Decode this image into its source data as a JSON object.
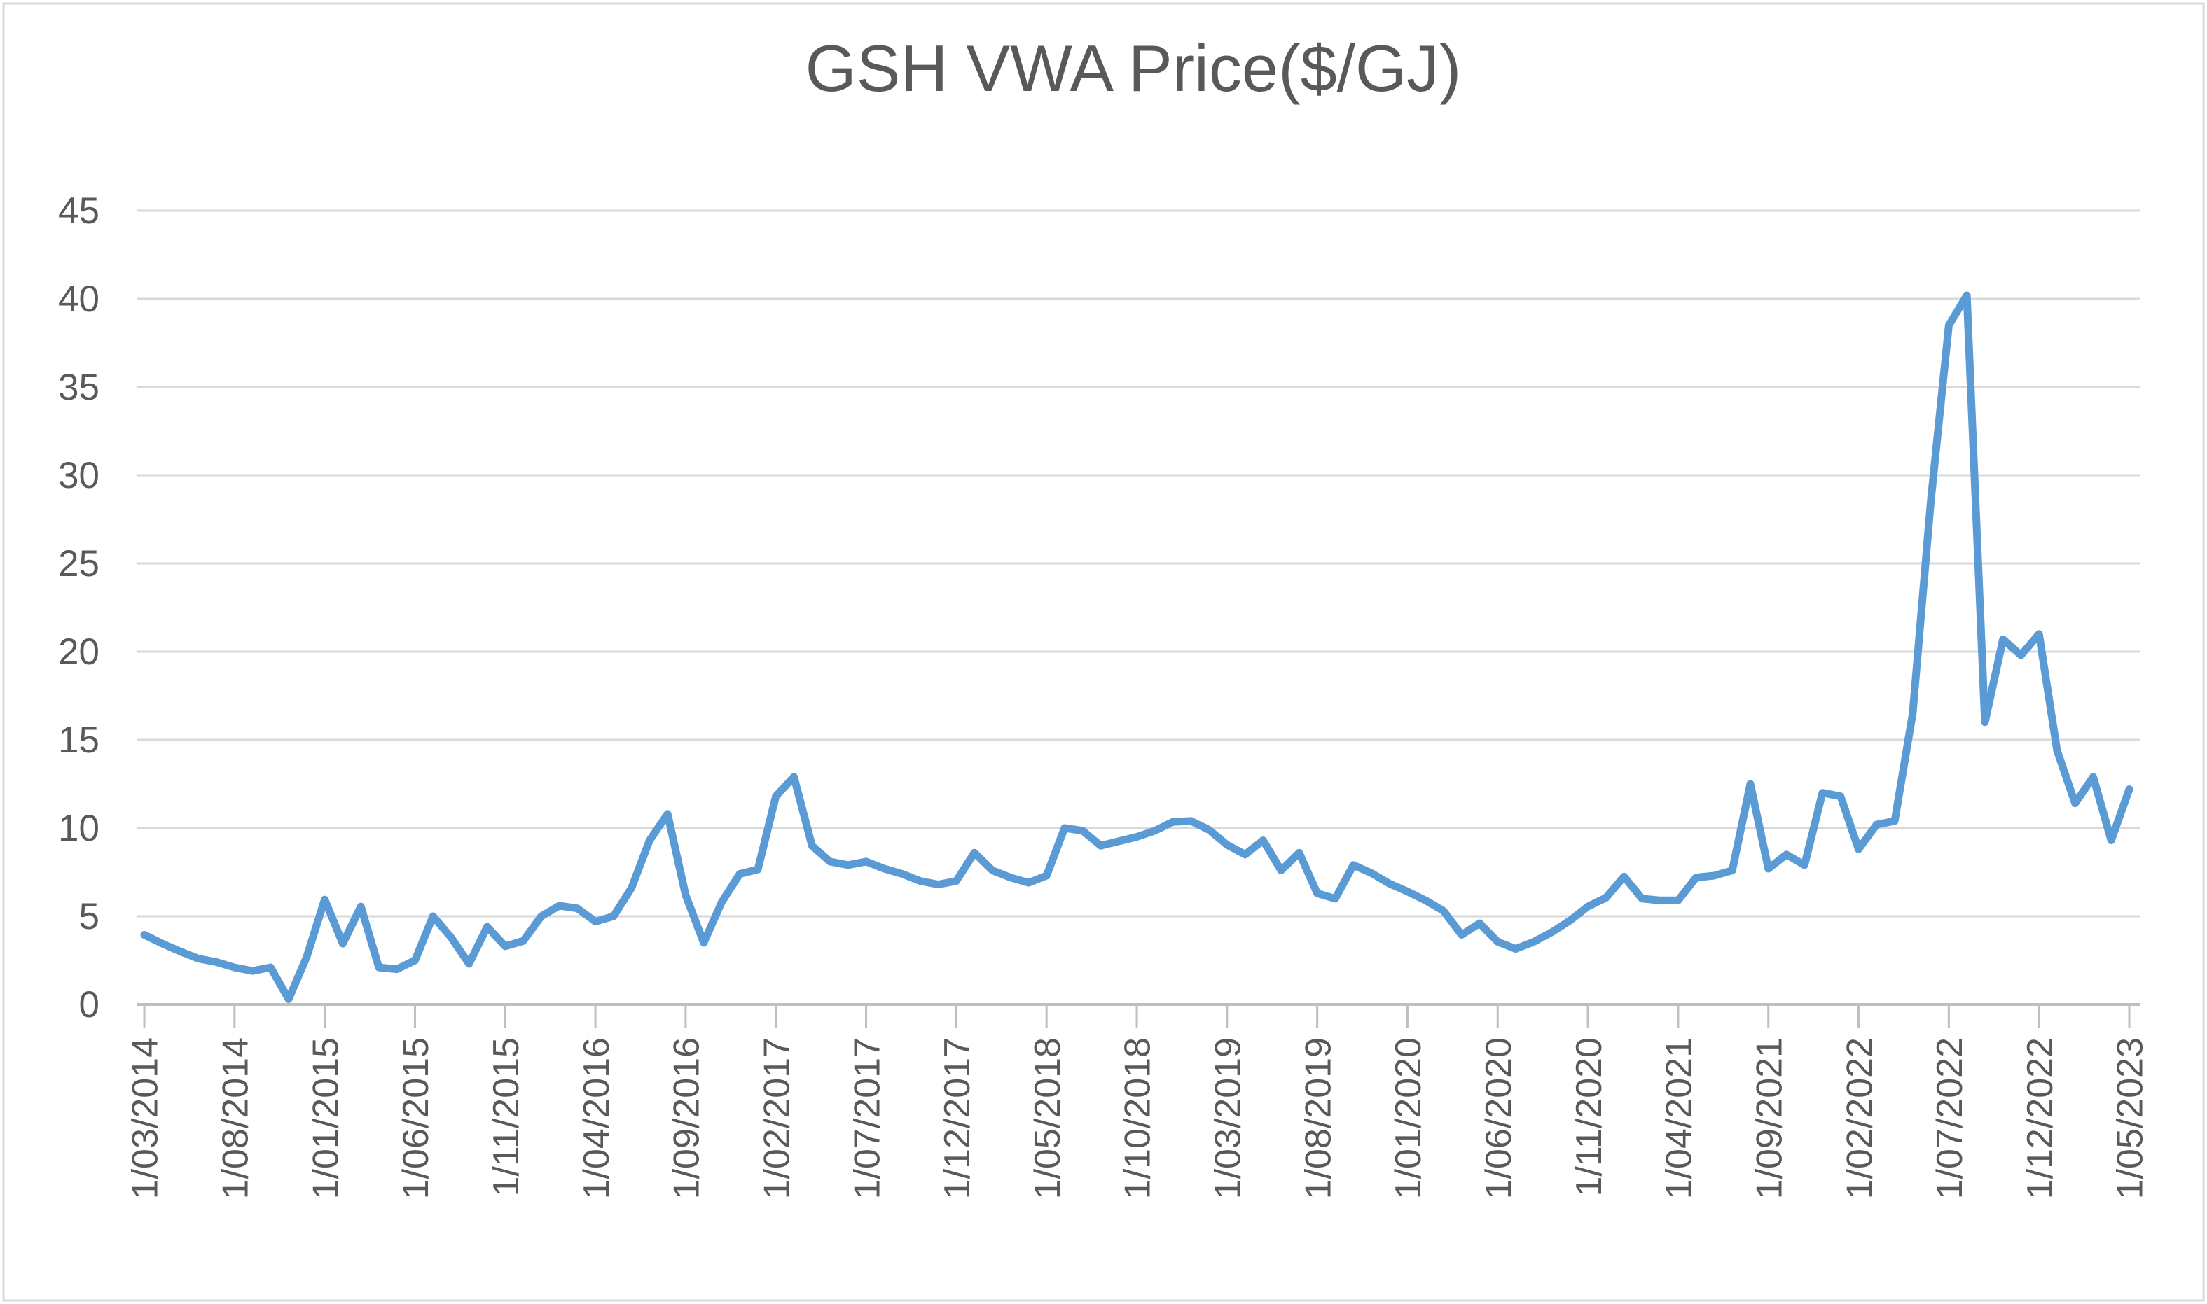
{
  "page": {
    "background": "#ffffff",
    "border_color": "#d9d9d9"
  },
  "chart_data": {
    "type": "line",
    "title": "GSH VWA Price($/GJ)",
    "xlabel": "",
    "ylabel": "",
    "legend": "none",
    "grid": "horizontal",
    "ylim": [
      0,
      45
    ],
    "y_ticks": [
      0,
      5,
      10,
      15,
      20,
      25,
      30,
      35,
      40,
      45
    ],
    "x_frequency": "monthly",
    "x_range": {
      "first_point": "1/03/2014",
      "last_point": "1/05/2023"
    },
    "x_tick_every_n_points": 5,
    "x_tick_labels": [
      "1/03/2014",
      "1/08/2014",
      "1/01/2015",
      "1/06/2015",
      "1/11/2015",
      "1/04/2016",
      "1/09/2016",
      "1/02/2017",
      "1/07/2017",
      "1/12/2017",
      "1/05/2018",
      "1/10/2018",
      "1/03/2019",
      "1/08/2019",
      "1/01/2020",
      "1/06/2020",
      "1/11/2020",
      "1/04/2021",
      "1/09/2021",
      "1/02/2022",
      "1/07/2022",
      "1/12/2022",
      "1/05/2023"
    ],
    "series": [
      {
        "name": "GSH VWA Price ($/GJ)",
        "color": "#5b9bd5",
        "values": [
          3.95,
          3.45,
          3.0,
          2.6,
          2.4,
          2.1,
          1.9,
          2.1,
          0.3,
          2.7,
          5.95,
          3.45,
          5.55,
          2.1,
          2.0,
          2.5,
          5.0,
          3.8,
          2.3,
          4.4,
          3.3,
          3.6,
          5.0,
          5.6,
          5.45,
          4.7,
          5.0,
          6.6,
          9.3,
          10.8,
          6.2,
          3.5,
          5.8,
          7.4,
          7.65,
          11.8,
          12.9,
          9.0,
          8.1,
          7.9,
          8.1,
          7.7,
          7.4,
          7.0,
          6.8,
          7.0,
          8.6,
          7.6,
          7.2,
          6.9,
          7.3,
          10.0,
          9.85,
          9.0,
          9.25,
          9.5,
          9.85,
          10.35,
          10.4,
          9.9,
          9.05,
          8.5,
          9.3,
          7.6,
          8.6,
          6.3,
          6.0,
          7.9,
          7.45,
          6.85,
          6.4,
          5.9,
          5.3,
          3.95,
          4.6,
          3.55,
          3.15,
          3.55,
          4.1,
          4.75,
          5.55,
          6.05,
          7.25,
          6.0,
          5.9,
          5.9,
          7.2,
          7.3,
          7.6,
          12.5,
          7.7,
          8.5,
          7.9,
          12.0,
          11.8,
          8.8,
          10.2,
          10.4,
          16.5,
          28.5,
          38.5,
          40.2,
          16.0,
          20.7,
          19.8,
          21.0,
          14.4,
          11.4,
          12.9,
          9.3,
          12.2
        ]
      }
    ],
    "styles": {
      "gridline_color": "#d9d9d9",
      "axis_line_color": "#bfbfbf",
      "tick_color": "#bfbfbf",
      "axis_label_color": "#595959",
      "title_color": "#595959",
      "chart_border_color": "#d9d9d9",
      "line_width": 11
    }
  }
}
